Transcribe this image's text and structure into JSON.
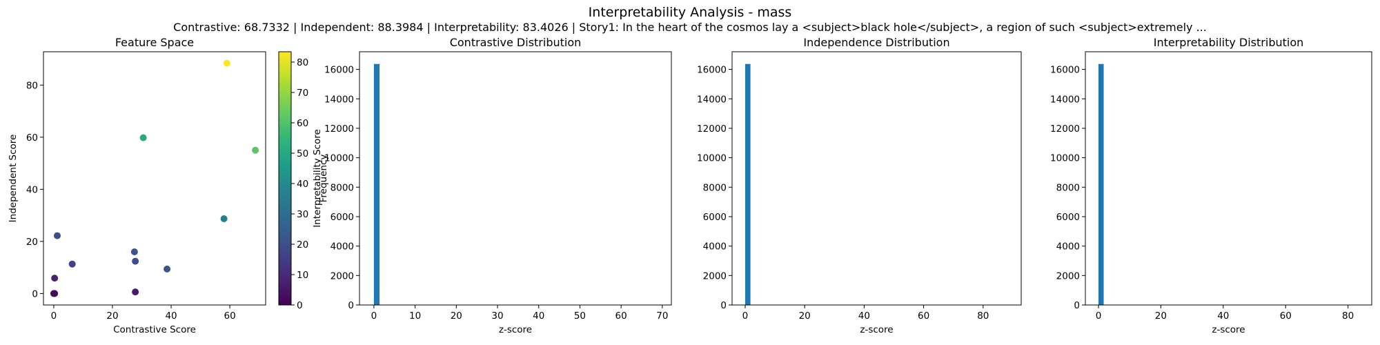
{
  "figure": {
    "title": "Interpretability Analysis - mass",
    "subtitle": "Contrastive: 68.7332 | Independent: 88.3984 | Interpretability: 83.4026 | Story1: In the heart of the cosmos lay a <subject>black hole</subject>, a region of such <subject>extremely ..."
  },
  "chart_data": [
    {
      "type": "scatter",
      "title": "Feature Space",
      "xlabel": "Contrastive Score",
      "ylabel": "Independent Score",
      "xlim": [
        -3.5,
        72.2
      ],
      "ylim": [
        -4.4,
        92.8
      ],
      "xticks": [
        0,
        20,
        40,
        60
      ],
      "yticks": [
        0,
        20,
        40,
        60,
        80
      ],
      "grid": false,
      "points": [
        {
          "x": 59.0,
          "y": 88.4,
          "c": 83.4
        },
        {
          "x": 30.5,
          "y": 59.8,
          "c": 50.0
        },
        {
          "x": 68.7,
          "y": 55.0,
          "c": 62.0
        },
        {
          "x": 58.0,
          "y": 28.7,
          "c": 36.0
        },
        {
          "x": 1.2,
          "y": 22.2,
          "c": 20.0
        },
        {
          "x": 27.5,
          "y": 16.0,
          "c": 22.0
        },
        {
          "x": 27.8,
          "y": 12.4,
          "c": 20.0
        },
        {
          "x": 6.3,
          "y": 11.3,
          "c": 16.0
        },
        {
          "x": 38.6,
          "y": 9.4,
          "c": 22.0
        },
        {
          "x": 0.3,
          "y": 5.9,
          "c": 8.0
        },
        {
          "x": 27.8,
          "y": 0.6,
          "c": 6.0
        },
        {
          "x": 0.0,
          "y": 0.0,
          "c": 4.0
        },
        {
          "x": 0.3,
          "y": 0.0,
          "c": 2.0
        }
      ],
      "colorbar": {
        "label": "Interpretability Score",
        "range": [
          0,
          83.4
        ],
        "ticks": [
          0,
          10,
          20,
          30,
          40,
          50,
          60,
          70,
          80
        ],
        "colormap": "viridis"
      }
    },
    {
      "type": "bar",
      "title": "Contrastive Distribution",
      "xlabel": "z-score",
      "ylabel": "Frequency",
      "xlim": [
        -3.5,
        72.2
      ],
      "ylim": [
        0,
        17200
      ],
      "xticks": [
        0,
        10,
        20,
        30,
        40,
        50,
        60,
        70
      ],
      "yticks": [
        0,
        2000,
        4000,
        6000,
        8000,
        10000,
        12000,
        14000,
        16000
      ],
      "bars": [
        {
          "x0": 0.0,
          "x1": 1.37,
          "value": 16370
        }
      ],
      "color": "#1f77b4"
    },
    {
      "type": "bar",
      "title": "Independence Distribution",
      "xlabel": "z-score",
      "ylabel": "",
      "xlim": [
        -4.4,
        92.8
      ],
      "ylim": [
        0,
        17200
      ],
      "xticks": [
        0,
        20,
        40,
        60,
        80
      ],
      "yticks": [
        0,
        2000,
        4000,
        6000,
        8000,
        10000,
        12000,
        14000,
        16000
      ],
      "bars": [
        {
          "x0": 0.0,
          "x1": 1.77,
          "value": 16370
        }
      ],
      "color": "#1f77b4"
    },
    {
      "type": "bar",
      "title": "Interpretability Distribution",
      "xlabel": "z-score",
      "ylabel": "",
      "xlim": [
        -4.2,
        87.6
      ],
      "ylim": [
        0,
        17200
      ],
      "xticks": [
        0,
        20,
        40,
        60,
        80
      ],
      "yticks": [
        0,
        2000,
        4000,
        6000,
        8000,
        10000,
        12000,
        14000,
        16000
      ],
      "bars": [
        {
          "x0": 0.0,
          "x1": 1.67,
          "value": 16370
        }
      ],
      "color": "#1f77b4"
    }
  ]
}
